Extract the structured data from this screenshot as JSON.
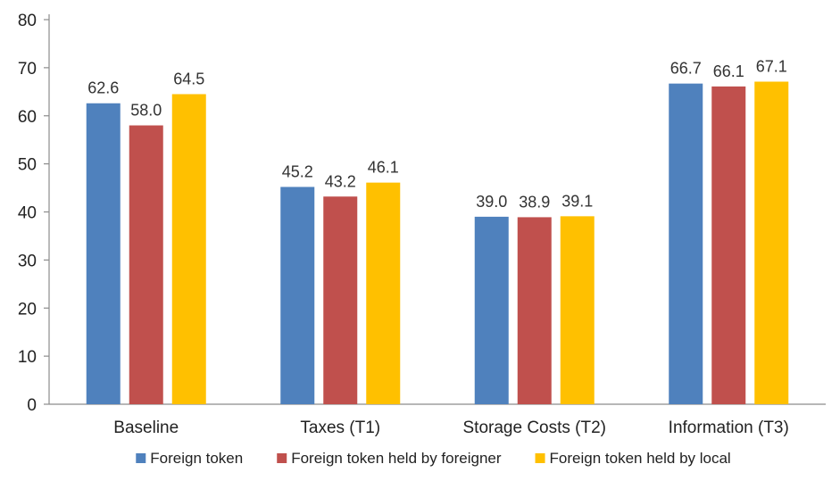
{
  "chart_data": {
    "type": "bar",
    "categories": [
      "Baseline",
      "Taxes (T1)",
      "Storage Costs (T2)",
      "Information (T3)"
    ],
    "series": [
      {
        "name": "Foreign token",
        "color": "#4F81BD",
        "values": [
          62.6,
          45.2,
          39.0,
          66.7
        ]
      },
      {
        "name": "Foreign token held by foreigner",
        "color": "#C0504D",
        "values": [
          58.0,
          43.2,
          38.9,
          66.1
        ]
      },
      {
        "name": "Foreign token held by local",
        "color": "#FFC000",
        "values": [
          64.5,
          46.1,
          39.1,
          67.1
        ]
      }
    ],
    "data_labels": [
      [
        "62.6",
        "45.2",
        "39.0",
        "66.7"
      ],
      [
        "58.0",
        "43.2",
        "38.9",
        "66.1"
      ],
      [
        "64.5",
        "46.1",
        "39.1",
        "67.1"
      ]
    ],
    "yticks": [
      0,
      10,
      20,
      30,
      40,
      50,
      60,
      70,
      80
    ],
    "ylim": [
      0,
      80
    ],
    "title": "",
    "xlabel": "",
    "ylabel": "",
    "grid": false,
    "legend_position": "bottom"
  }
}
